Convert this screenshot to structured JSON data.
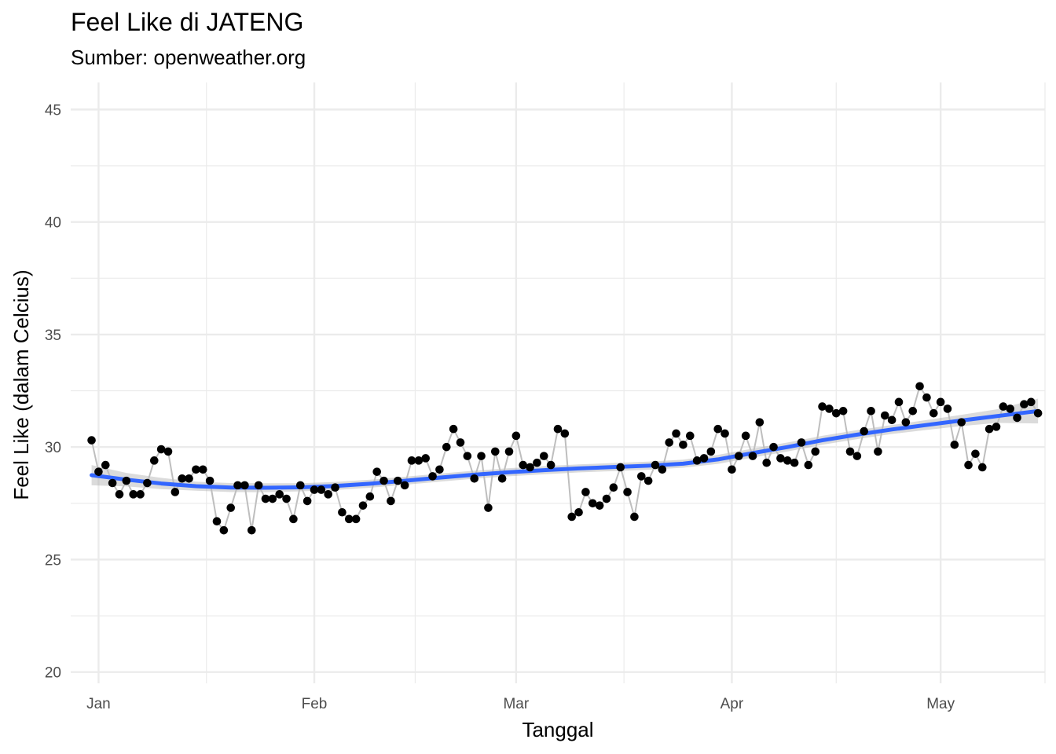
{
  "chart_data": {
    "type": "line",
    "title": "Feel Like di JATENG",
    "subtitle": "Sumber: openweather.org",
    "xlabel": "Tanggal",
    "ylabel": "Feel Like (dalam Celcius)",
    "ylim": [
      19.5,
      46.2
    ],
    "y_ticks": [
      20,
      25,
      30,
      35,
      40,
      45
    ],
    "x_tick_labels": [
      "Jan",
      "Feb",
      "Mar",
      "Apr",
      "May"
    ],
    "x_range_days": [
      -3,
      137
    ],
    "grid": true,
    "legend": "none",
    "start_date": "2023-12-31",
    "series": [
      {
        "style": "line+points",
        "x_days": [
          0,
          1,
          2,
          3,
          4,
          5,
          6,
          7,
          8,
          9,
          10,
          11,
          12,
          13,
          14,
          15,
          16,
          17,
          18,
          19,
          20,
          21,
          22,
          23,
          24,
          25,
          26,
          27,
          28,
          29,
          30,
          31,
          32,
          33,
          34,
          35,
          36,
          37,
          38,
          39,
          40,
          41,
          42,
          43,
          44,
          45,
          46,
          47,
          48,
          49,
          50,
          51,
          52,
          53,
          54,
          55,
          56,
          57,
          58,
          59,
          60,
          61,
          62,
          63,
          64,
          65,
          66,
          67,
          68,
          69,
          70,
          71,
          72,
          73,
          74,
          75,
          76,
          77,
          78,
          79,
          80,
          81,
          82,
          83,
          84,
          85,
          86,
          87,
          88,
          89,
          90,
          91,
          92,
          93,
          94,
          95,
          96,
          97,
          98,
          99,
          100,
          101,
          102,
          103,
          104,
          105,
          106,
          107,
          108,
          109,
          110,
          111,
          112,
          113,
          114,
          115,
          116,
          117,
          118,
          119,
          120,
          121,
          122,
          123,
          124,
          125,
          126,
          127,
          128,
          129,
          130,
          131,
          132,
          133,
          134,
          135,
          136
        ],
        "values": [
          30.3,
          28.9,
          29.2,
          28.4,
          27.9,
          28.5,
          27.9,
          27.9,
          28.4,
          29.4,
          29.9,
          29.8,
          28.0,
          28.6,
          28.6,
          29.0,
          29.0,
          28.5,
          26.7,
          26.3,
          27.3,
          28.3,
          28.3,
          26.3,
          28.3,
          27.7,
          27.7,
          27.9,
          27.7,
          26.8,
          28.3,
          27.6,
          28.1,
          28.1,
          27.9,
          28.2,
          27.1,
          26.8,
          26.8,
          27.4,
          27.8,
          28.9,
          28.5,
          27.6,
          28.5,
          28.3,
          29.4,
          29.4,
          29.5,
          28.7,
          29.0,
          30.0,
          30.8,
          30.2,
          29.6,
          28.6,
          29.6,
          27.3,
          29.8,
          28.6,
          29.8,
          30.5,
          29.2,
          29.1,
          29.3,
          29.6,
          29.2,
          30.8,
          30.6,
          26.9,
          27.1,
          28.0,
          27.5,
          27.4,
          27.7,
          28.2,
          29.1,
          28.0,
          26.9,
          28.7,
          28.5,
          29.2,
          29.0,
          30.2,
          30.6,
          30.1,
          30.5,
          29.4,
          29.5,
          29.8,
          30.8,
          30.6,
          29.0,
          29.6,
          30.5,
          29.6,
          31.1,
          29.3,
          30.0,
          29.5,
          29.4,
          29.3,
          30.2,
          29.2,
          29.8,
          31.8,
          31.7,
          31.5,
          31.6,
          29.8,
          29.6,
          30.7,
          31.6,
          29.8,
          31.4,
          31.2,
          32.0,
          31.1,
          31.6,
          32.7,
          32.2,
          31.5,
          32.0,
          31.7,
          30.1,
          31.1,
          29.2,
          29.7,
          29.1,
          30.8,
          30.9,
          31.8,
          31.7,
          31.3,
          31.9,
          32.0,
          31.5
        ]
      },
      {
        "style": "smooth",
        "color": "#3366FF",
        "x_days": [
          0,
          5,
          10,
          15,
          20,
          25,
          30,
          35,
          40,
          45,
          50,
          55,
          60,
          65,
          70,
          75,
          80,
          85,
          90,
          95,
          100,
          105,
          110,
          115,
          120,
          125,
          130,
          136
        ],
        "values": [
          28.75,
          28.55,
          28.38,
          28.26,
          28.2,
          28.19,
          28.21,
          28.27,
          28.37,
          28.5,
          28.64,
          28.77,
          28.88,
          28.97,
          29.05,
          29.11,
          29.17,
          29.26,
          29.45,
          29.73,
          30.0,
          30.3,
          30.55,
          30.78,
          30.98,
          31.18,
          31.37,
          31.6
        ],
        "band_halfwidth": [
          0.45,
          0.3,
          0.25,
          0.2,
          0.2,
          0.2,
          0.18,
          0.18,
          0.18,
          0.18,
          0.18,
          0.18,
          0.18,
          0.18,
          0.18,
          0.18,
          0.18,
          0.18,
          0.2,
          0.2,
          0.2,
          0.2,
          0.2,
          0.2,
          0.22,
          0.25,
          0.3,
          0.55
        ]
      }
    ]
  }
}
